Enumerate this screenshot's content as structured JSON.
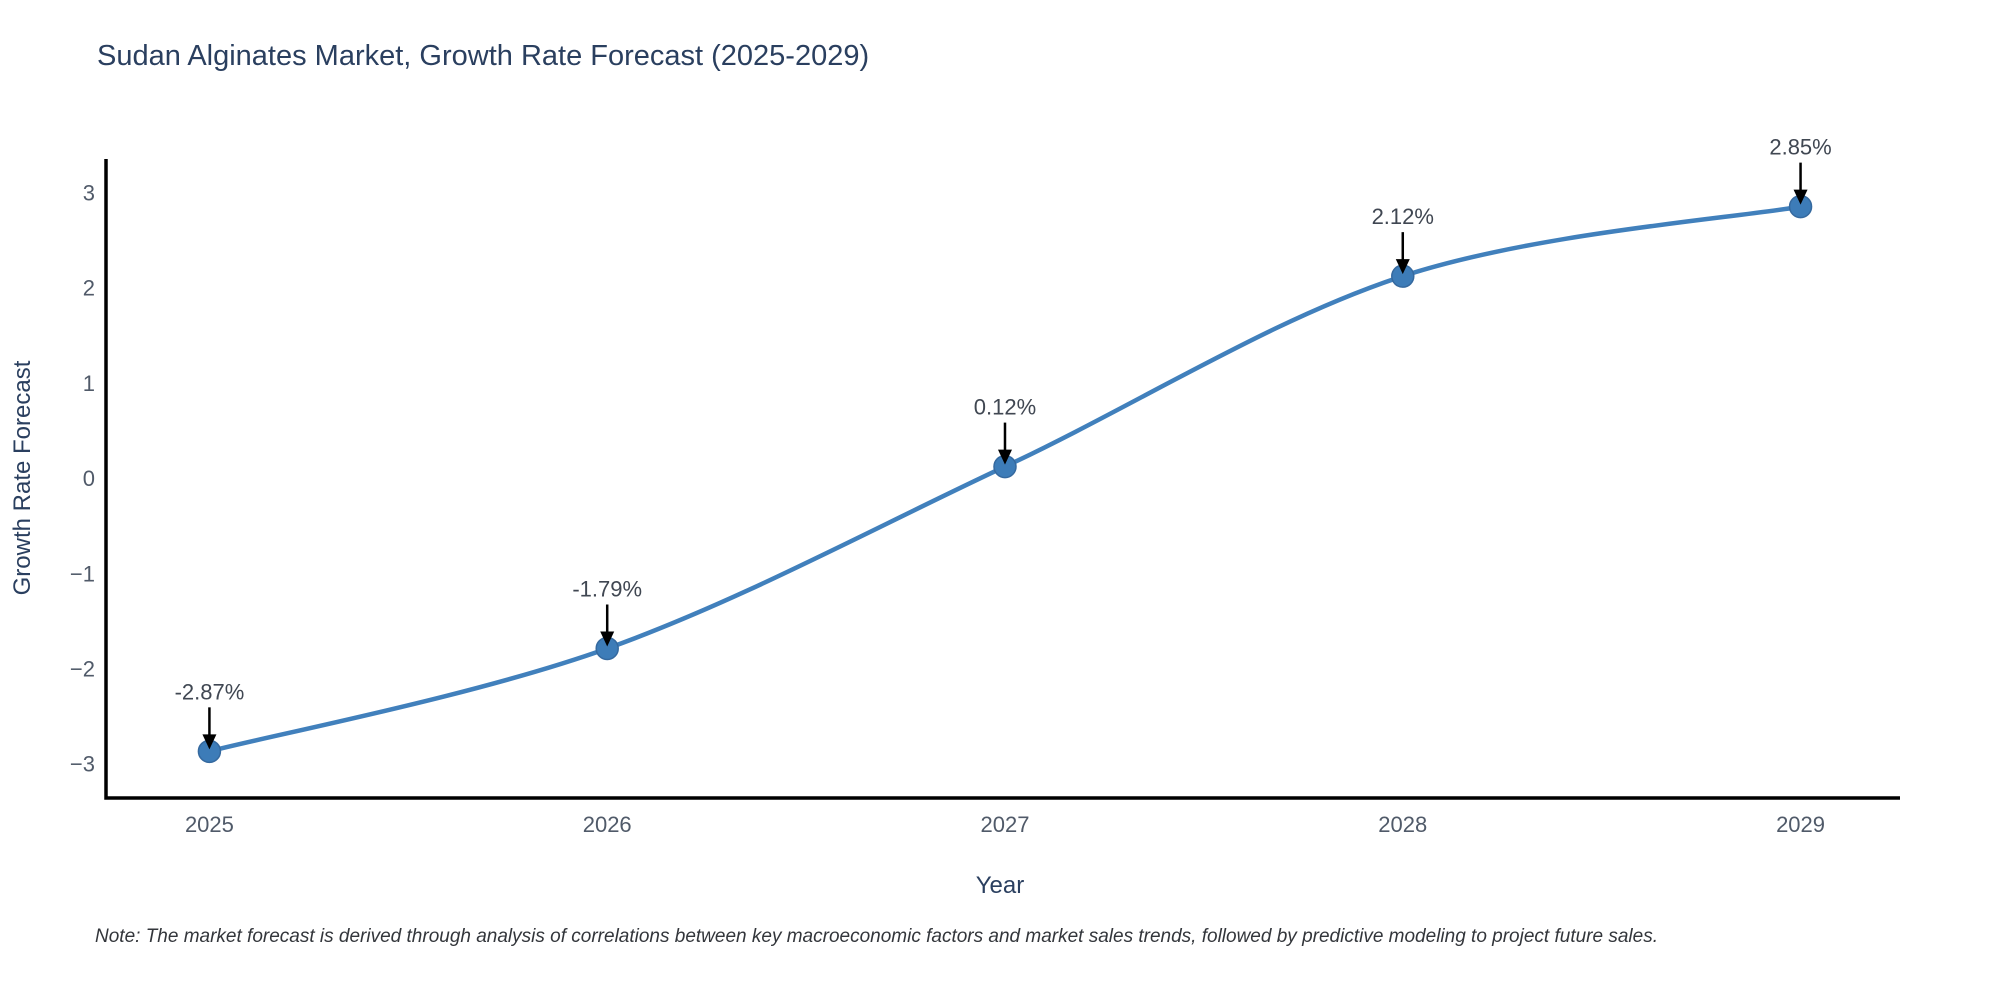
{
  "chart_data": {
    "type": "line",
    "title": "Sudan Alginates Market, Growth Rate Forecast (2025-2029)",
    "xlabel": "Year",
    "ylabel": "Growth Rate Forecast",
    "note": "Note: The market forecast is derived through analysis of correlations between key macroeconomic factors and market sales trends, followed by predictive modeling to project future sales.",
    "x": [
      2025,
      2026,
      2027,
      2028,
      2029
    ],
    "y": [
      -2.87,
      -1.79,
      0.12,
      2.12,
      2.85
    ],
    "labels": [
      "-2.87%",
      "-1.79%",
      "0.12%",
      "2.12%",
      "2.85%"
    ],
    "yticks": [
      3,
      2,
      1,
      0,
      -1,
      -2,
      -3
    ],
    "xlim": [
      2024.74,
      2029.25
    ],
    "ylim": [
      -3.36,
      3.35
    ],
    "grid": false,
    "legend": false,
    "line_color": "#4180bc",
    "marker_color": "#3d7cb8",
    "marker_edge_color": "#35699f",
    "arrow_color": "#000000",
    "axis_color": "#000000",
    "background_color": "#ffffff"
  }
}
